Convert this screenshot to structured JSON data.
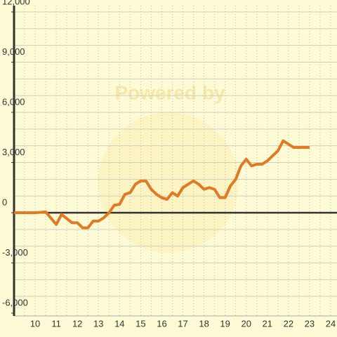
{
  "chart_data": {
    "type": "line",
    "watermark": "Powered by",
    "x": [
      9,
      10,
      10.5,
      11,
      11.25,
      11.75,
      12,
      12.25,
      12.5,
      12.75,
      13,
      13.25,
      13.5,
      13.75,
      14,
      14.25,
      14.5,
      14.75,
      15,
      15.25,
      15.5,
      15.75,
      16,
      16.25,
      16.5,
      16.75,
      17,
      17.25,
      17.5,
      17.75,
      18,
      18.25,
      18.5,
      18.75,
      19,
      19.25,
      19.5,
      19.75,
      20,
      20.25,
      20.5,
      20.75,
      21,
      21.25,
      21.5,
      21.75,
      22,
      22.25,
      23
    ],
    "series": [
      {
        "color": "#e07b24",
        "values": [
          0,
          0,
          50,
          -700,
          -100,
          -600,
          -600,
          -900,
          -900,
          -500,
          -500,
          -300,
          0,
          450,
          500,
          1100,
          1200,
          1700,
          1900,
          1900,
          1400,
          1100,
          900,
          800,
          1200,
          1000,
          1500,
          1700,
          1900,
          1700,
          1400,
          1500,
          1400,
          900,
          900,
          1600,
          2000,
          2800,
          3200,
          2800,
          2900,
          2900,
          3100,
          3400,
          3700,
          4300,
          4100,
          3900,
          3900
        ]
      }
    ],
    "xlim": [
      9,
      24.3
    ],
    "xticks": [
      10,
      11,
      12,
      13,
      14,
      15,
      16,
      17,
      18,
      19,
      20,
      21,
      22,
      23,
      24
    ],
    "xgrid": [
      9.5,
      10,
      10.5,
      11,
      11.5,
      12,
      12.5,
      13,
      13.5,
      14,
      14.5,
      15,
      15.5,
      16,
      16.5,
      17,
      17.5,
      18,
      18.5,
      19,
      19.5,
      20,
      20.5,
      21,
      21.5,
      22,
      22.5,
      23,
      23.5,
      24
    ],
    "ylim": [
      -6000,
      12000
    ],
    "yticks": [
      {
        "value": 12000,
        "label": "12,000"
      },
      {
        "value": 9000,
        "label": "9,000"
      },
      {
        "value": 6000,
        "label": "6,000"
      },
      {
        "value": 3000,
        "label": "3,000"
      },
      0,
      {
        "value": -3000,
        "label": "-3,000"
      },
      {
        "value": -6000,
        "label": "-6,000"
      }
    ],
    "ygrid": [
      -5000,
      -4000,
      -3000,
      -2000,
      -1000,
      1000,
      2000,
      3000,
      4000,
      5000,
      6000,
      7000,
      8000,
      9000,
      10000,
      11000,
      12000
    ],
    "grid": true
  }
}
